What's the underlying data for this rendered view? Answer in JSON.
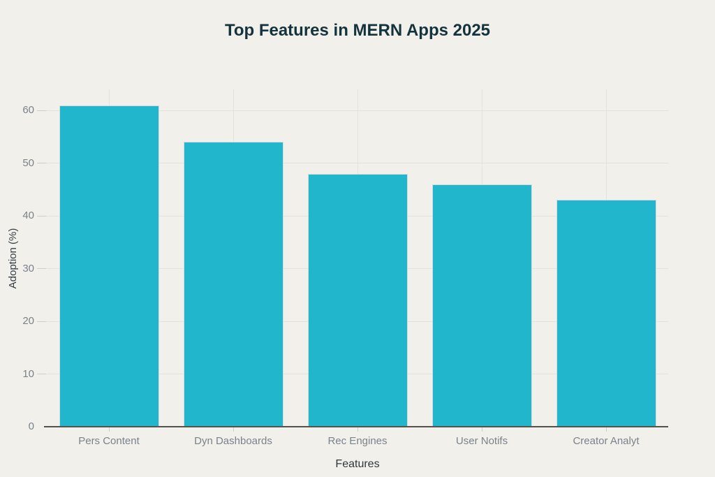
{
  "chart_data": {
    "type": "bar",
    "title": "Top Features in MERN Apps 2025",
    "xlabel": "Features",
    "ylabel": "Adoption (%)",
    "categories": [
      "Pers Content",
      "Dyn Dashboards",
      "Rec Engines",
      "User Notifs",
      "Creator Analyt"
    ],
    "values": [
      61,
      54,
      48,
      46,
      43
    ],
    "yticks": [
      0,
      10,
      20,
      30,
      40,
      50,
      60
    ],
    "ylim": [
      0,
      64
    ],
    "grid": "on",
    "legend": "none",
    "colors": {
      "background": "#f1f0ea",
      "bar": "#21b6cc",
      "bar_edge": "#d6dbe2",
      "grid": "#e3e2db",
      "axis_line": "#55524c",
      "tick_label": "#7b828b",
      "axis_title": "#333d43",
      "title": "#14333d"
    }
  }
}
